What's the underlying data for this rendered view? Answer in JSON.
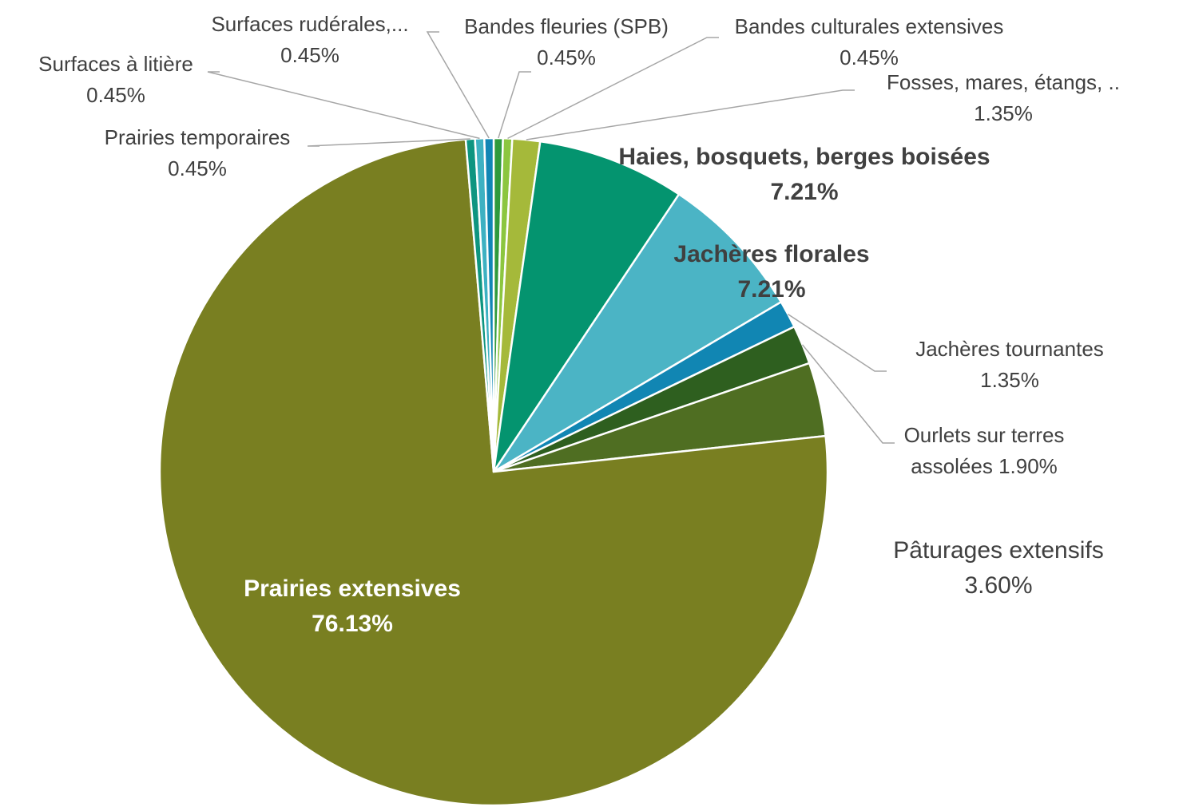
{
  "chart_data": {
    "type": "pie",
    "categories": [
      "Bandes fleuries (SPB)",
      "Bandes culturales extensives",
      "Fosses, mares, étangs, ..",
      "Haies, bosquets, berges boisées",
      "Jachères florales",
      "Jachères tournantes",
      "Ourlets sur terres assolées",
      "Pâturages extensifs",
      "Prairies extensives",
      "Prairies temporaires",
      "Surfaces à litière",
      "Surfaces rudérales,..."
    ],
    "values": [
      0.45,
      0.45,
      1.35,
      7.21,
      7.21,
      1.35,
      1.9,
      3.6,
      76.13,
      0.45,
      0.45,
      0.45
    ],
    "value_labels": [
      "0.45%",
      "0.45%",
      "1.35%",
      "7.21%",
      "7.21%",
      "1.35%",
      "1.90%",
      "3.60%",
      "76.13%",
      "0.45%",
      "0.45%",
      "0.45%"
    ],
    "colors": [
      "#2f9a3c",
      "#8cc63f",
      "#a5b93a",
      "#04946f",
      "#4bb4c5",
      "#1186b3",
      "#2e5f1f",
      "#4f6e22",
      "#797f21",
      "#0e9580",
      "#3db1c2",
      "#1186b5"
    ]
  }
}
